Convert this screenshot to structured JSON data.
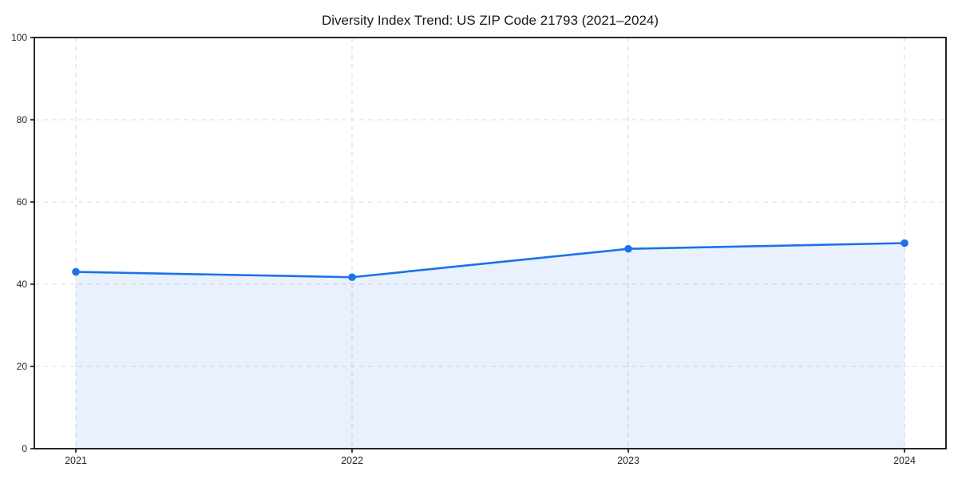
{
  "chart_data": {
    "type": "line",
    "title": "Diversity Index Trend: US ZIP Code 21793 (2021–2024)",
    "x": [
      2021,
      2022,
      2023,
      2024
    ],
    "xtick_labels": [
      "2021",
      "2022",
      "2023",
      "2024"
    ],
    "values": [
      43.0,
      41.7,
      48.6,
      50.0
    ],
    "xlabel": "",
    "ylabel": "",
    "ylim": [
      0,
      100
    ],
    "yticks": [
      0,
      20,
      40,
      60,
      80,
      100
    ],
    "grid": true,
    "grid_style": "dashed",
    "legend_position": "none",
    "marker": "circle",
    "area_fill": true,
    "colors": {
      "line": "#1a73e8",
      "marker": "#1a73e8",
      "area_fill": "rgba(26,115,232,0.10)",
      "gridline": "#dcdcdc",
      "axis_border": "#111111",
      "title_text": "#1a1a1a",
      "tick_text": "#262626"
    }
  }
}
